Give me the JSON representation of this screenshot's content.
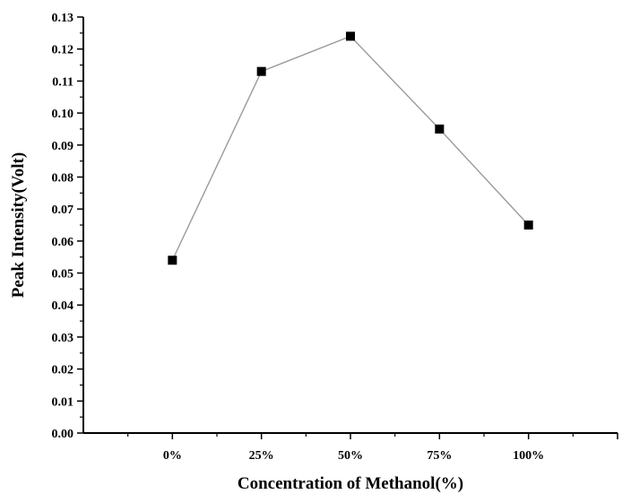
{
  "chart_data": {
    "type": "line",
    "title": "",
    "xlabel": "Concentration of Methanol(%)",
    "ylabel": "Peak Intensity(Volt)",
    "categories": [
      "0%",
      "25%",
      "50%",
      "75%",
      "100%"
    ],
    "series": [
      {
        "values": [
          0.054,
          0.113,
          0.124,
          0.095,
          0.065
        ],
        "marker": "square",
        "line_color": "#9a9a9a",
        "marker_color": "#000000"
      }
    ],
    "ylim": [
      0,
      0.13
    ],
    "y_ticks": [
      "0.00",
      "0.01",
      "0.02",
      "0.03",
      "0.04",
      "0.05",
      "0.06",
      "0.07",
      "0.08",
      "0.09",
      "0.10",
      "0.11",
      "0.12",
      "0.13"
    ],
    "grid": false,
    "legend": "none"
  }
}
